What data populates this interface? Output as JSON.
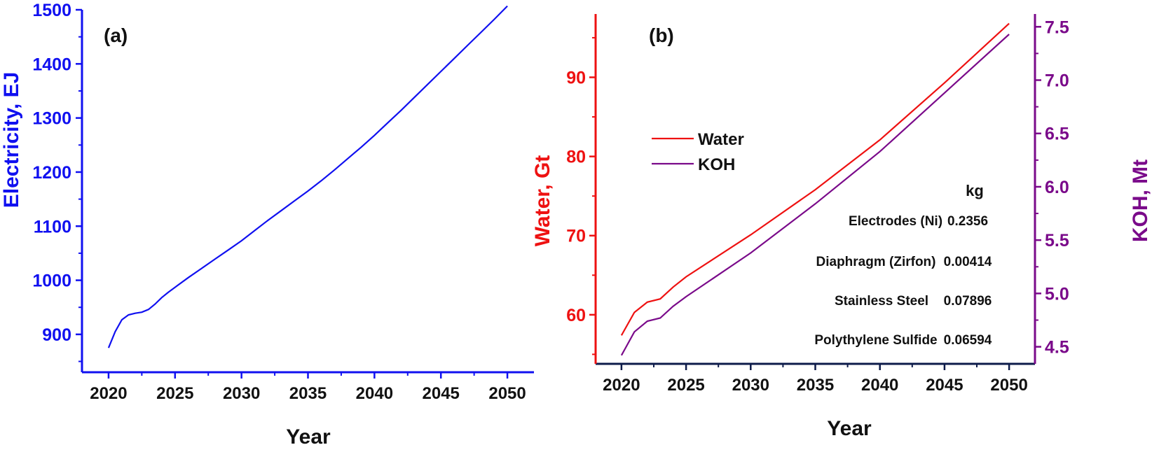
{
  "colors": {
    "electricity": "#1010f0",
    "water": "#ee1111",
    "koh": "#7a0a8a",
    "axis_a": "#1010f0",
    "axis_b_bottom": "#0d1b4a",
    "axis_b_left": "#ee1111",
    "axis_b_right": "#7a0a8a",
    "text": "#111111"
  },
  "chart_data": [
    {
      "panel": "(a)",
      "type": "line",
      "xlabel": "Year",
      "ylabel": "Electricity, EJ",
      "xlim": [
        2018,
        2052
      ],
      "ylim": [
        830,
        1500
      ],
      "xticks": [
        2020,
        2025,
        2030,
        2035,
        2040,
        2045,
        2050
      ],
      "yticks": [
        900,
        1000,
        1100,
        1200,
        1300,
        1400,
        1500
      ],
      "series": [
        {
          "x": [
            2020,
            2020.5,
            2021,
            2021.5,
            2022,
            2022.5,
            2023,
            2023.5,
            2024,
            2024.5,
            2025,
            2026,
            2027,
            2028,
            2029,
            2030,
            2031,
            2032,
            2033,
            2034,
            2035,
            2036,
            2037,
            2038,
            2039,
            2040,
            2041,
            2042,
            2043,
            2044,
            2045,
            2046,
            2047,
            2048,
            2049,
            2050
          ],
          "y": [
            875,
            905,
            927,
            936,
            939,
            941,
            946,
            956,
            968,
            978,
            987,
            1005,
            1022,
            1039,
            1056,
            1073,
            1092,
            1111,
            1129,
            1147,
            1165,
            1184,
            1204,
            1225,
            1246,
            1268,
            1291,
            1314,
            1338,
            1362,
            1386,
            1410,
            1434,
            1458,
            1482,
            1507
          ]
        }
      ]
    },
    {
      "panel": "(b)",
      "type": "line",
      "xlabel": "Year",
      "ylabel_left": "Water, Gt",
      "ylabel_right": "KOH, Mt",
      "xlim": [
        2018,
        2052
      ],
      "ylim_left": [
        53.8,
        98
      ],
      "ylim_right": [
        4.34,
        7.62
      ],
      "xticks": [
        2020,
        2025,
        2030,
        2035,
        2040,
        2045,
        2050
      ],
      "yticks_left": [
        60,
        70,
        80,
        90
      ],
      "yticks_right": [
        4.5,
        5.0,
        5.5,
        6.0,
        6.5,
        7.0,
        7.5
      ],
      "yticks_right_labels": [
        "4.5",
        "5.0",
        "5.5",
        "6.0",
        "6.5",
        "7.0",
        "7.5"
      ],
      "series": [
        {
          "name": "Water",
          "axis": "left",
          "x": [
            2020,
            2021,
            2022,
            2023,
            2024,
            2025,
            2030,
            2035,
            2040,
            2045,
            2050
          ],
          "y": [
            57.4,
            60.3,
            61.6,
            62.0,
            63.5,
            64.8,
            70.1,
            75.8,
            82.1,
            89.3,
            96.8
          ]
        },
        {
          "name": "KOH",
          "axis": "right",
          "x": [
            2020,
            2021,
            2022,
            2023,
            2024,
            2025,
            2030,
            2035,
            2040,
            2045,
            2050
          ],
          "y": [
            4.42,
            4.64,
            4.74,
            4.77,
            4.88,
            4.97,
            5.38,
            5.84,
            6.33,
            6.88,
            7.43
          ]
        }
      ],
      "legend_position": "upper-left",
      "annotation_table": {
        "header": "kg",
        "rows": [
          {
            "item": "Electrodes (Ni)",
            "value": "0.2356"
          },
          {
            "item": "Diaphragm (Zirfon)",
            "value": "0.00414"
          },
          {
            "item": "Stainless Steel",
            "value": "0.07896"
          },
          {
            "item": "Polythylene Sulfide",
            "value": "0.06594"
          }
        ]
      }
    }
  ]
}
